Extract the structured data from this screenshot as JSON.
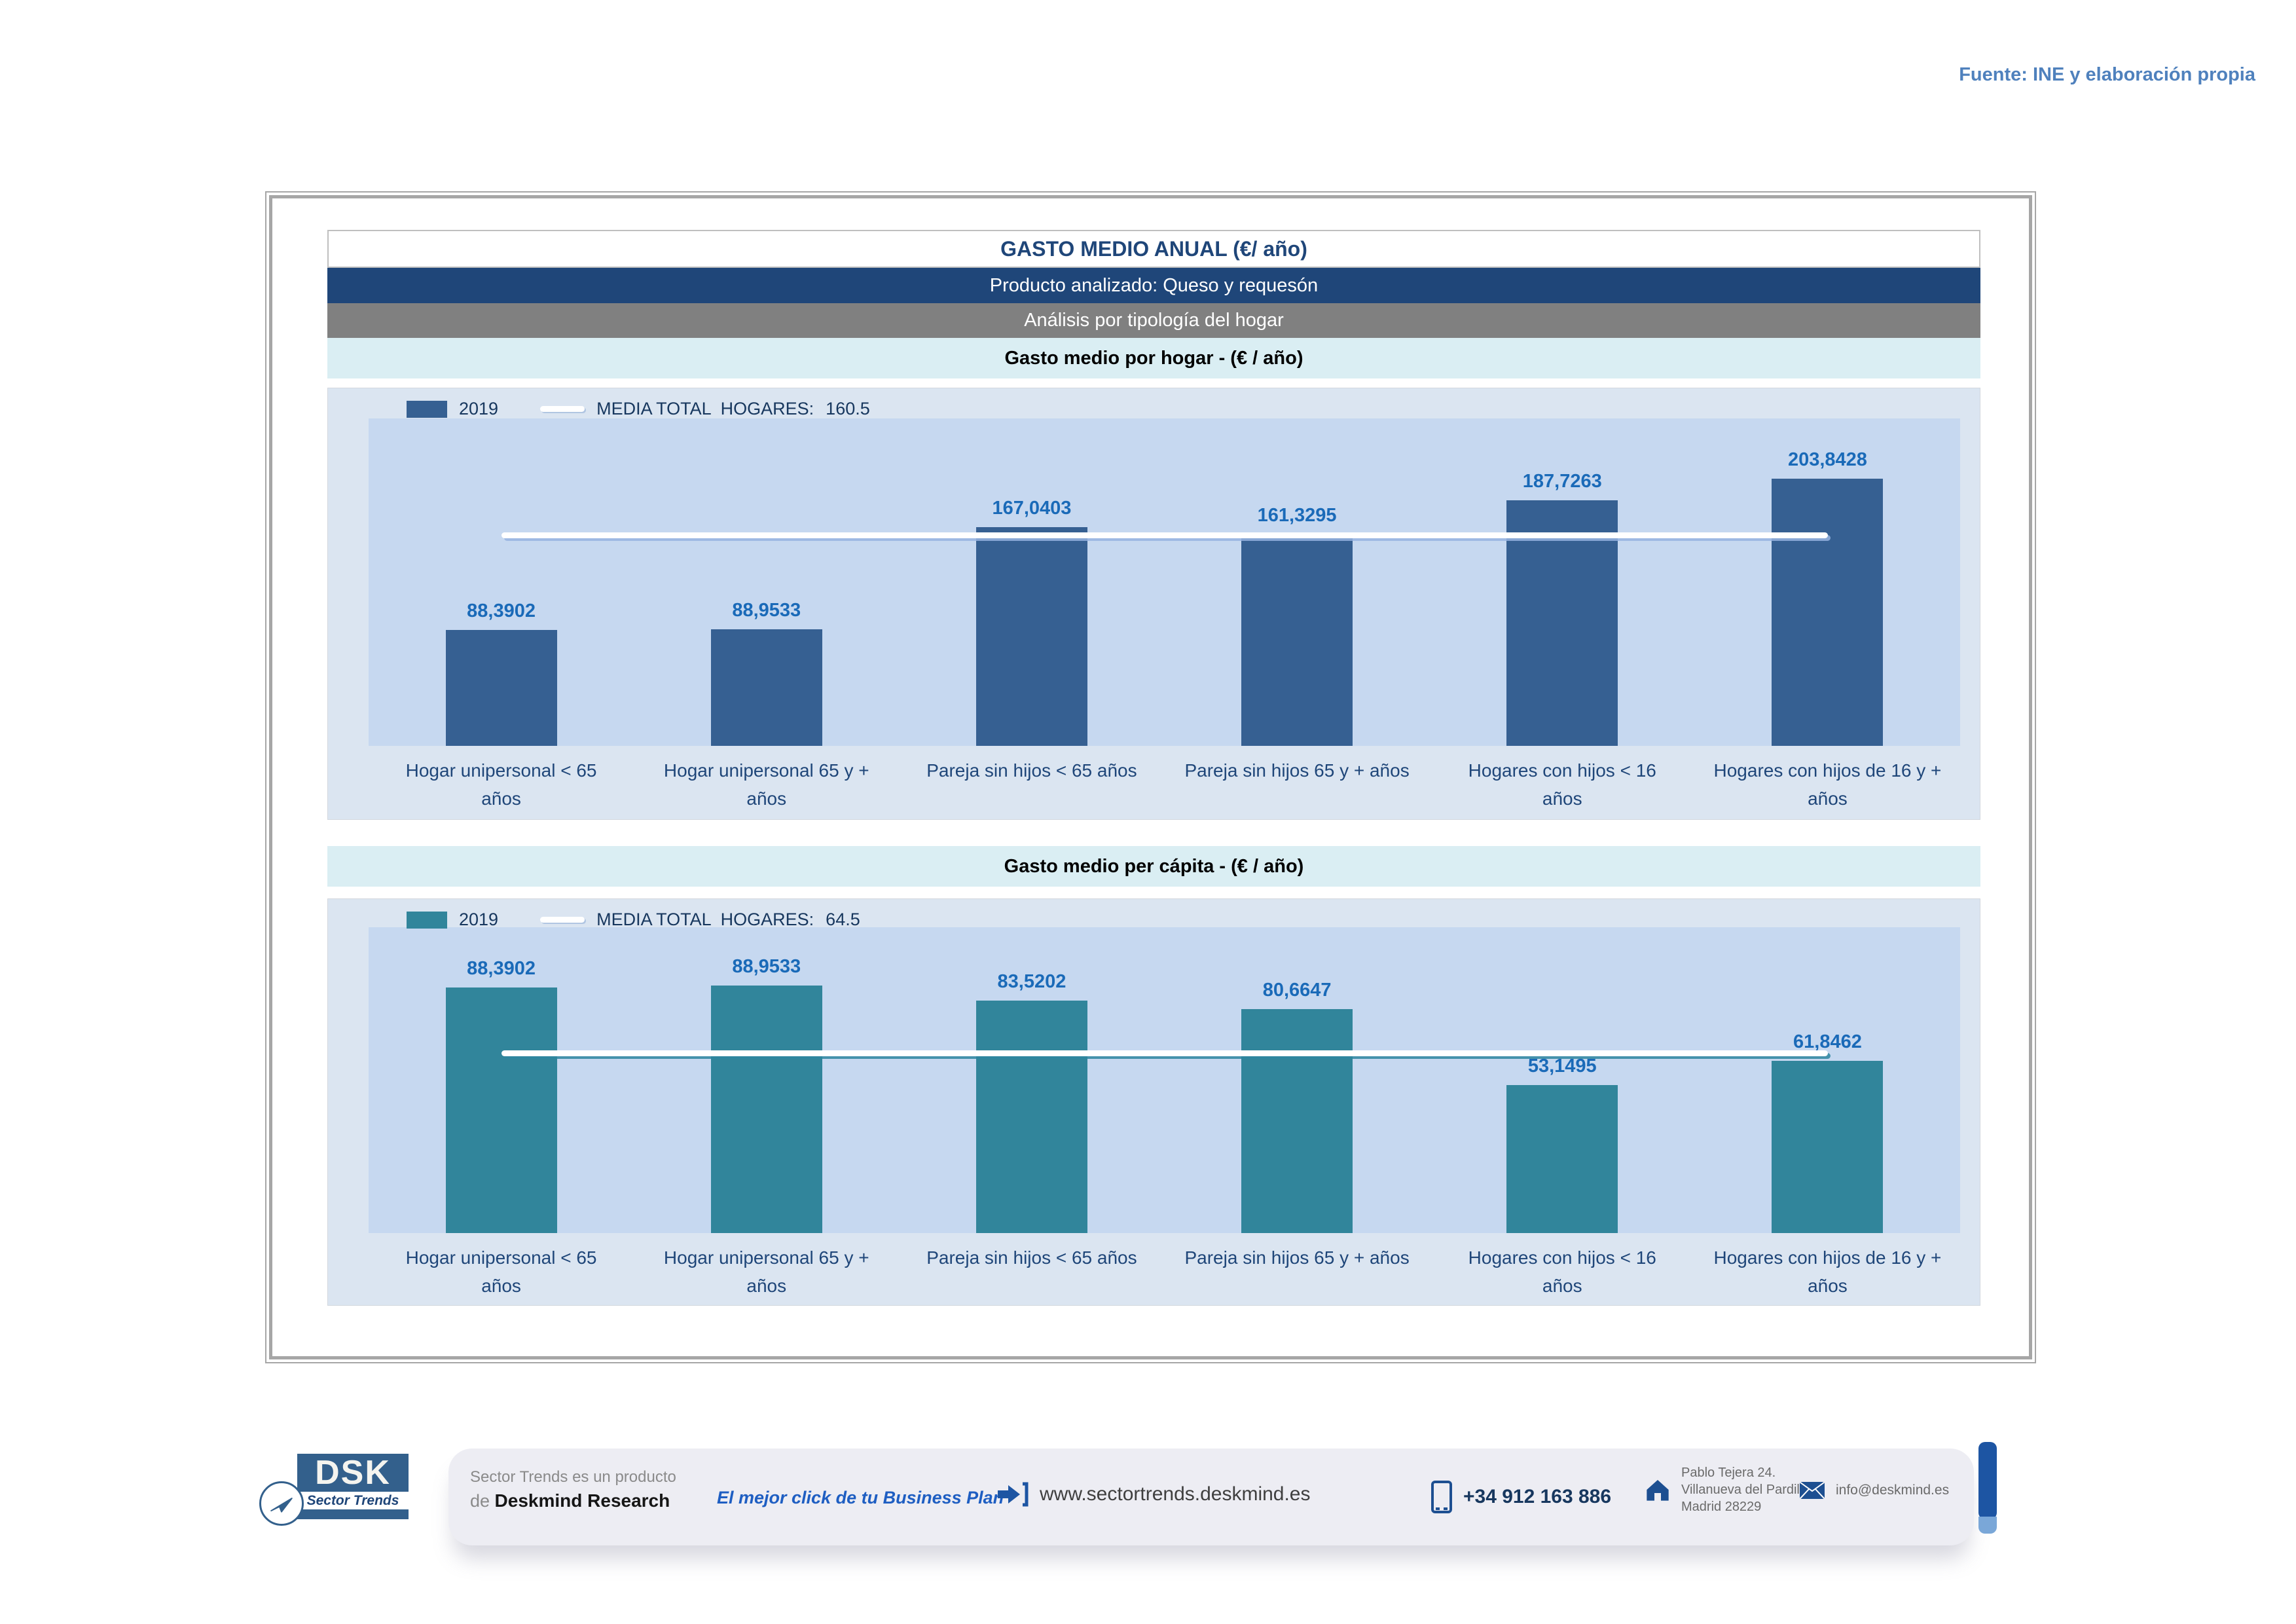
{
  "source_note": "Fuente: INE y elaboración propia",
  "header": {
    "title": "GASTO MEDIO ANUAL (€/ año)",
    "product": "Producto analizado: Queso y requesón",
    "analysis": "Análisis por tipología del hogar"
  },
  "chart_data": [
    {
      "type": "bar",
      "title": "Gasto medio por hogar -  (€ / año)",
      "legend_year": "2019",
      "media_label": "MEDIA TOTAL  HOGARES:",
      "media_value": 160.5,
      "media_value_label": "160.5",
      "categories": [
        "Hogar unipersonal < 65 años",
        "Hogar unipersonal  65 y + años",
        "Pareja sin hijos < 65 años",
        "Pareja sin hijos 65 y + años",
        "Hogares con hijos < 16 años",
        "Hogares con hijos de 16 y + años"
      ],
      "values": [
        88.3902,
        88.9533,
        167.0403,
        161.3295,
        187.7263,
        203.8428
      ],
      "value_labels": [
        "88,3902",
        "88,9533",
        "167,0403",
        "161,3295",
        "187,7263",
        "203,8428"
      ],
      "ylim": [
        0,
        250
      ],
      "grid": false,
      "legend_position": "top-left",
      "bar_color": "#366092",
      "media_line_color": "#ffffff"
    },
    {
      "type": "bar",
      "title": "Gasto medio per cápita -  (€ / año)",
      "legend_year": "2019",
      "media_label": "MEDIA TOTAL  HOGARES:",
      "media_value": 64.5,
      "media_value_label": "64.5",
      "categories": [
        "Hogar unipersonal < 65 años",
        "Hogar unipersonal  65 y + años",
        "Pareja sin hijos < 65 años",
        "Pareja sin hijos 65 y + años",
        "Hogares con hijos < 16 años",
        "Hogares con hijos de 16 y + años"
      ],
      "values": [
        88.3902,
        88.9533,
        83.5202,
        80.6647,
        53.1495,
        61.8462
      ],
      "value_labels": [
        "88,3902",
        "88,9533",
        "83,5202",
        "80,6647",
        "53,1495",
        "61,8462"
      ],
      "ylim": [
        0,
        110
      ],
      "grid": false,
      "legend_position": "top-left",
      "bar_color": "#31859B",
      "media_line_color": "#ffffff"
    }
  ],
  "footer": {
    "logo_text": "DSK",
    "logo_subtitle": "Sector Trends",
    "product_line1": "Sector Trends es un producto",
    "product_line2_prefix": "de ",
    "product_line2_bold": "Deskmind Research",
    "tagline": "El mejor click de tu Business Plan",
    "website": "www.sectortrends.deskmind.es",
    "phone": "+34 912 163 886",
    "address_line1": "Pablo Tejera 24.",
    "address_line2": "Villanueva del Pardillo.",
    "address_line3": "Madrid 28229",
    "email": "info@deskmind.es"
  },
  "colors": {
    "band_blue": "#1F4679",
    "band_grey": "#808080",
    "band_cyan": "#DAEEF3",
    "panel_bg": "#DBE5F1",
    "plot_bg": "#C6D8F0",
    "bar_hogar": "#366092",
    "bar_capita": "#31859B",
    "value_label_text": "#1A6AB8",
    "axis_text": "#1F4679",
    "source_text": "#4F81BD",
    "footer_pill": "#1D55A3"
  }
}
